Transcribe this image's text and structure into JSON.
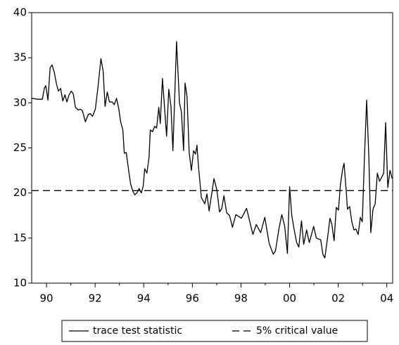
{
  "chart_data": {
    "type": "line",
    "x": [
      1989.39,
      1989.62,
      1989.83,
      1989.91,
      1989.97,
      1990.06,
      1990.15,
      1990.23,
      1990.32,
      1990.41,
      1990.49,
      1990.58,
      1990.67,
      1990.76,
      1990.84,
      1990.93,
      1991.02,
      1991.1,
      1991.19,
      1991.31,
      1991.4,
      1991.48,
      1991.6,
      1991.72,
      1991.8,
      1991.89,
      1992.01,
      1992.12,
      1992.24,
      1992.33,
      1992.41,
      1992.5,
      1992.59,
      1992.7,
      1992.79,
      1992.88,
      1992.97,
      1993.05,
      1993.14,
      1993.2,
      1993.28,
      1993.37,
      1993.46,
      1993.55,
      1993.63,
      1993.72,
      1993.81,
      1993.9,
      1993.98,
      1994.04,
      1994.13,
      1994.22,
      1994.27,
      1994.36,
      1994.45,
      1994.53,
      1994.62,
      1994.68,
      1994.77,
      1994.85,
      1994.94,
      1995.03,
      1995.12,
      1995.2,
      1995.35,
      1995.47,
      1995.55,
      1995.64,
      1995.7,
      1995.78,
      1995.87,
      1995.96,
      1996.05,
      1996.13,
      1996.19,
      1996.25,
      1996.37,
      1996.51,
      1996.6,
      1996.69,
      1996.89,
      1997.01,
      1997.12,
      1997.21,
      1997.3,
      1997.41,
      1997.53,
      1997.65,
      1997.79,
      1998.02,
      1998.23,
      1998.49,
      1998.63,
      1998.81,
      1998.98,
      1999.16,
      1999.33,
      1999.42,
      1999.56,
      1999.68,
      1999.8,
      1999.91,
      2000.0,
      2000.09,
      2000.17,
      2000.29,
      2000.38,
      2000.49,
      2000.58,
      2000.7,
      2000.81,
      2000.99,
      2001.1,
      2001.28,
      2001.37,
      2001.45,
      2001.57,
      2001.66,
      2001.74,
      2001.83,
      2001.92,
      2002.01,
      2002.09,
      2002.18,
      2002.24,
      2002.33,
      2002.38,
      2002.47,
      2002.56,
      2002.65,
      2002.73,
      2002.82,
      2002.91,
      2002.99,
      2003.08,
      2003.17,
      2003.26,
      2003.34,
      2003.43,
      2003.52,
      2003.61,
      2003.7,
      2003.78,
      2003.87,
      2003.95,
      2004.04,
      2004.13,
      2004.22
    ],
    "series": [
      {
        "name": "trace test statistic",
        "color": "#000000",
        "values": [
          30.5,
          30.4,
          30.4,
          31.6,
          31.9,
          30.3,
          33.9,
          34.2,
          33.4,
          32.1,
          31.3,
          31.6,
          30.2,
          30.9,
          30.1,
          30.9,
          31.3,
          31.0,
          29.5,
          29.2,
          29.3,
          29.1,
          27.9,
          28.7,
          28.8,
          28.5,
          29.3,
          31.8,
          34.9,
          33.5,
          29.6,
          31.2,
          30.1,
          30.1,
          29.8,
          30.5,
          29.4,
          27.9,
          27.0,
          24.4,
          24.5,
          22.7,
          21.0,
          20.2,
          19.8,
          20.0,
          20.5,
          20.0,
          20.8,
          22.7,
          22.2,
          24.0,
          27.0,
          26.8,
          27.4,
          27.2,
          29.5,
          27.7,
          32.7,
          29.7,
          26.3,
          31.5,
          29.6,
          24.7,
          36.8,
          30.0,
          29.0,
          24.7,
          32.2,
          30.7,
          24.5,
          22.5,
          24.7,
          24.3,
          25.3,
          23.0,
          19.5,
          18.8,
          19.9,
          18.0,
          21.6,
          20.3,
          17.9,
          18.3,
          19.7,
          17.8,
          17.5,
          16.2,
          17.6,
          17.2,
          18.3,
          15.4,
          16.5,
          15.6,
          17.3,
          14.4,
          13.2,
          13.6,
          16.0,
          17.6,
          16.3,
          13.3,
          20.7,
          17.5,
          16.2,
          14.5,
          14.0,
          16.9,
          14.3,
          15.9,
          14.5,
          16.3,
          15.0,
          14.8,
          13.2,
          12.8,
          15.2,
          17.2,
          16.5,
          14.7,
          18.4,
          18.1,
          20.9,
          22.6,
          23.3,
          20.2,
          18.2,
          18.5,
          16.8,
          15.9,
          16.0,
          15.4,
          17.3,
          16.8,
          24.0,
          30.3,
          24.0,
          15.6,
          18.2,
          18.8,
          22.2,
          21.3,
          21.7,
          22.2,
          27.8,
          20.6,
          22.5,
          21.6
        ]
      }
    ],
    "reference_lines": [
      {
        "name": "5% critical value",
        "value": 20.26,
        "color": "#000000",
        "dashed": true
      }
    ],
    "xlim": [
      1989.39,
      2004.24
    ],
    "xticks": [
      {
        "value": 1990,
        "label": "90"
      },
      {
        "value": 1992,
        "label": "92"
      },
      {
        "value": 1994,
        "label": "94"
      },
      {
        "value": 1996,
        "label": "96"
      },
      {
        "value": 1998,
        "label": "98"
      },
      {
        "value": 2000,
        "label": "00"
      },
      {
        "value": 2002,
        "label": "02"
      },
      {
        "value": 2004,
        "label": "04"
      }
    ],
    "xminorticks": [
      1991,
      1993,
      1995,
      1997,
      1999,
      2001,
      2003
    ],
    "ylim": [
      10,
      40
    ],
    "yticks": [
      10,
      15,
      20,
      25,
      30,
      35,
      40
    ],
    "legend": "bottom"
  }
}
